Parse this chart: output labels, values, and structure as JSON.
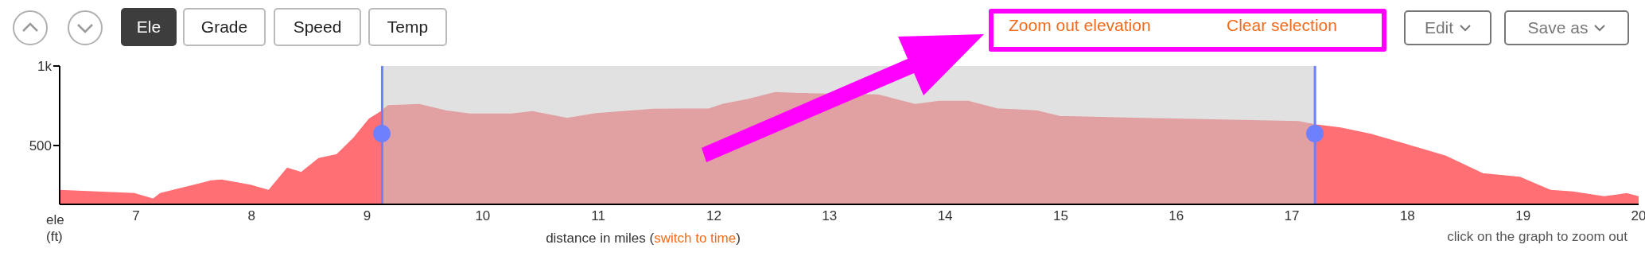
{
  "chart_data": {
    "type": "area",
    "xlabel": "distance in miles (switch to time)",
    "ylabel": "ele (ft)",
    "x": [
      6.34,
      6.58,
      6.99,
      7.15,
      7.21,
      7.65,
      7.74,
      7.99,
      8.15,
      8.31,
      8.43,
      8.58,
      8.74,
      8.88,
      9.02,
      9.13,
      9.18,
      9.45,
      9.68,
      9.89,
      10.25,
      10.43,
      10.73,
      10.98,
      11.48,
      11.96,
      12.07,
      12.3,
      12.53,
      12.71,
      13.42,
      13.74,
      13.95,
      14.2,
      14.45,
      14.79,
      14.99,
      15.7,
      17.06,
      17.2,
      17.42,
      17.7,
      17.97,
      18.33,
      18.65,
      18.97,
      19.24,
      19.43,
      19.7,
      19.9,
      20
    ],
    "series": [
      {
        "color": "#ff6f73",
        "values": [
          217,
          210,
          197,
          163,
          197,
          277,
          283,
          250,
          217,
          357,
          330,
          417,
          443,
          543,
          667,
          717,
          750,
          757,
          717,
          697,
          697,
          713,
          670,
          700,
          727,
          730,
          757,
          790,
          833,
          827,
          817,
          757,
          777,
          777,
          730,
          717,
          683,
          670,
          650,
          630,
          610,
          567,
          510,
          433,
          323,
          300,
          217,
          207,
          177,
          197,
          177
        ]
      }
    ],
    "xlim": [
      6.34,
      20
    ],
    "xticks": [
      7,
      8,
      9,
      10,
      11,
      12,
      13,
      14,
      15,
      16,
      17,
      18,
      19,
      20
    ],
    "ylim": [
      130,
      1000
    ],
    "yticks": [
      500,
      {
        "value": 1000,
        "label": "1k"
      }
    ],
    "grid": false,
    "ref_lines": [
      {
        "axis": "x",
        "value": 9.13,
        "color": "#6f80ff"
      },
      {
        "axis": "x",
        "value": 17.2,
        "color": "#6f80ff"
      }
    ],
    "bands": [
      {
        "axis": "x",
        "from": 9.13,
        "to": 17.2,
        "color": "#c8c8c8"
      }
    ],
    "annotations": [
      "Ele",
      "Grade",
      "Speed",
      "Temp",
      "Zoom out elevation",
      "Clear selection",
      "Edit",
      "Save as",
      "click on the graph to zoom out"
    ]
  }
}
